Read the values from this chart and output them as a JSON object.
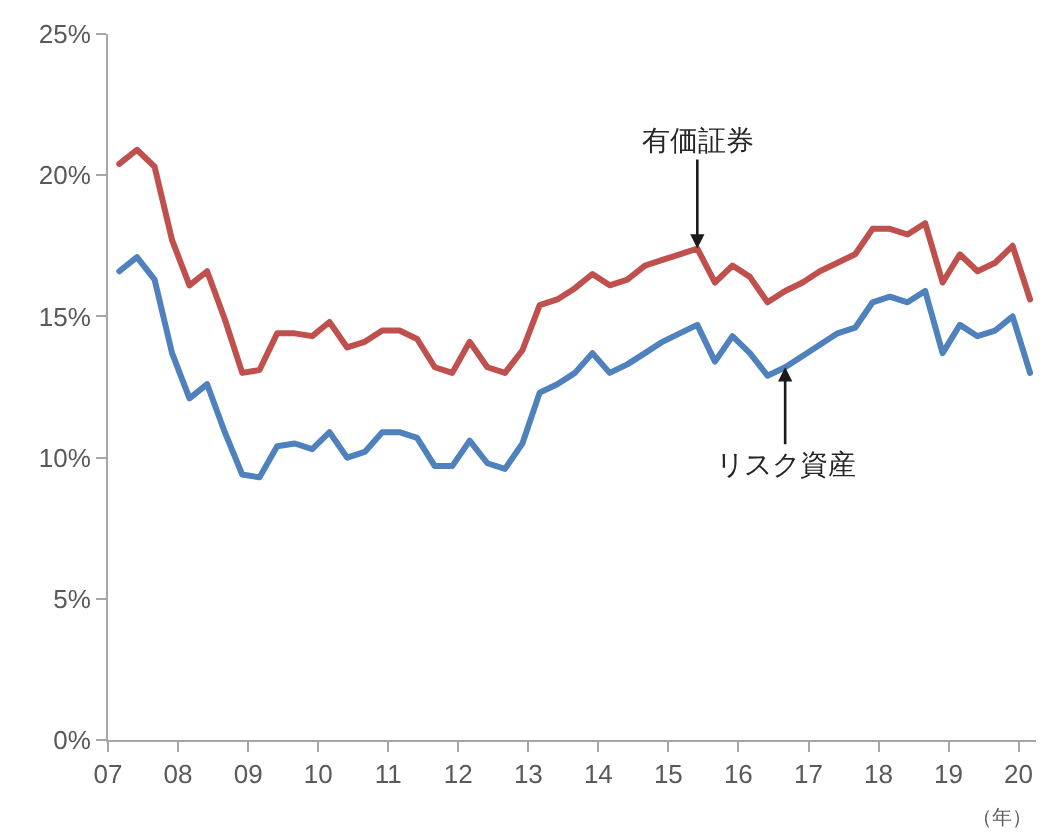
{
  "chart_data": {
    "type": "line",
    "x": [
      "2007-03",
      "2007-06",
      "2007-09",
      "2007-12",
      "2008-03",
      "2008-06",
      "2008-09",
      "2008-12",
      "2009-03",
      "2009-06",
      "2009-09",
      "2009-12",
      "2010-03",
      "2010-06",
      "2010-09",
      "2010-12",
      "2011-03",
      "2011-06",
      "2011-09",
      "2011-12",
      "2012-03",
      "2012-06",
      "2012-09",
      "2012-12",
      "2013-03",
      "2013-06",
      "2013-09",
      "2013-12",
      "2014-03",
      "2014-06",
      "2014-09",
      "2014-12",
      "2015-03",
      "2015-06",
      "2015-09",
      "2015-12",
      "2016-03",
      "2016-06",
      "2016-09",
      "2016-12",
      "2017-03",
      "2017-06",
      "2017-09",
      "2017-12",
      "2018-03",
      "2018-06",
      "2018-09",
      "2018-12",
      "2019-03",
      "2019-06",
      "2019-09",
      "2019-12",
      "2020-03"
    ],
    "series": [
      {
        "color": "#c0504d",
        "values": [
          20.4,
          20.9,
          20.3,
          17.7,
          16.1,
          16.6,
          14.9,
          13.0,
          13.1,
          14.4,
          14.4,
          14.3,
          14.8,
          13.9,
          14.1,
          14.5,
          14.5,
          14.2,
          13.2,
          13.0,
          14.1,
          13.2,
          13.0,
          13.8,
          15.4,
          15.6,
          16.0,
          16.5,
          16.1,
          16.3,
          16.8,
          17.0,
          17.2,
          17.4,
          16.2,
          16.8,
          16.4,
          15.5,
          15.9,
          16.2,
          16.6,
          16.9,
          17.2,
          18.1,
          18.1,
          17.9,
          18.3,
          16.2,
          17.2,
          16.6,
          16.9,
          17.5,
          15.6
        ]
      },
      {
        "color": "#4f81bd",
        "values": [
          16.6,
          17.1,
          16.3,
          13.7,
          12.1,
          12.6,
          10.9,
          9.4,
          9.3,
          10.4,
          10.5,
          10.3,
          10.9,
          10.0,
          10.2,
          10.9,
          10.9,
          10.7,
          9.7,
          9.7,
          10.6,
          9.8,
          9.6,
          10.5,
          12.3,
          12.6,
          13.0,
          13.7,
          13.0,
          13.3,
          13.7,
          14.1,
          14.4,
          14.7,
          13.4,
          14.3,
          13.7,
          12.9,
          13.2,
          13.6,
          14.0,
          14.4,
          14.6,
          15.5,
          15.7,
          15.5,
          15.9,
          13.7,
          14.7,
          14.3,
          14.5,
          15.0,
          13.0
        ]
      }
    ],
    "xlim": [
      "2007-01-01",
      "2020-04-01"
    ],
    "xticks": [
      {
        "value": "2007",
        "label": "07"
      },
      {
        "value": "2008",
        "label": "08"
      },
      {
        "value": "2009",
        "label": "09"
      },
      {
        "value": "2010",
        "label": "10"
      },
      {
        "value": "2011",
        "label": "11"
      },
      {
        "value": "2012",
        "label": "12"
      },
      {
        "value": "2013",
        "label": "13"
      },
      {
        "value": "2014",
        "label": "14"
      },
      {
        "value": "2015",
        "label": "15"
      },
      {
        "value": "2016",
        "label": "16"
      },
      {
        "value": "2017",
        "label": "17"
      },
      {
        "value": "2018",
        "label": "18"
      },
      {
        "value": "2019",
        "label": "19"
      },
      {
        "value": "2020",
        "label": "20"
      }
    ],
    "ylim": [
      0,
      25
    ],
    "yticks": [
      {
        "value": 0,
        "label": "0%"
      },
      {
        "value": 5,
        "label": "5%"
      },
      {
        "value": 10,
        "label": "10%"
      },
      {
        "value": 15,
        "label": "15%"
      },
      {
        "value": 20,
        "label": "20%"
      },
      {
        "value": 25,
        "label": "25%"
      }
    ],
    "annotations": [
      {
        "text": "有価証券",
        "x": "2015-06",
        "y": 17.4
      },
      {
        "text": "リスク資産",
        "x": "2016-09",
        "y": 13.2
      },
      "（年）"
    ],
    "grid": false,
    "marker": "none",
    "line_style": "solid"
  }
}
